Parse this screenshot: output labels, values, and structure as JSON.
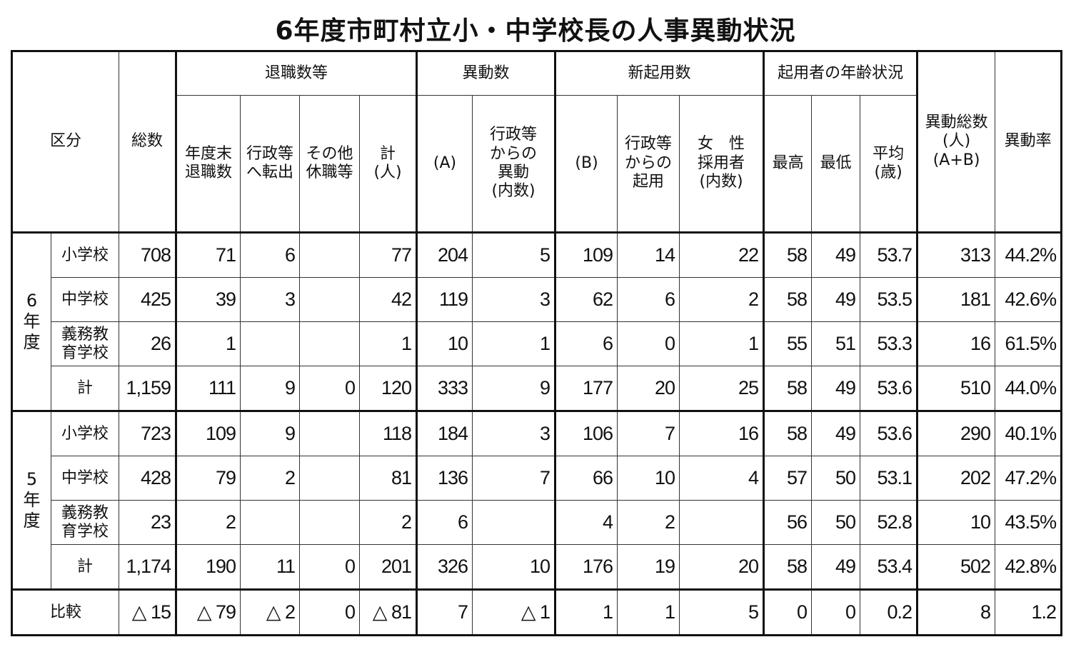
{
  "title": "6年度市町村立小・中学校長の人事異動状況",
  "header": {
    "kubun": "区分",
    "total": "総数",
    "retire_group": "退職数等",
    "transfer_group": "異動数",
    "new_group": "新起用数",
    "age_group": "起用者の年齢状況",
    "grand_total": "異動総数\n(人)\n(A+B)",
    "rate": "異動率",
    "sub": [
      "年度末\n退職数",
      "行政等\nへ転出",
      "その他\n休職等",
      "計\n(人)",
      "(A)",
      "行政等\nからの\n異動\n(内数)",
      "(B)",
      "行政等\nからの\n起用",
      "女　性\n採用者\n(内数)",
      "最高",
      "最低",
      "平均\n(歳)"
    ]
  },
  "groups": [
    {
      "year": "6\n年\n度",
      "rows": [
        {
          "label": "小学校",
          "values": [
            "708",
            "71",
            "6",
            "",
            "77",
            "204",
            "5",
            "109",
            "14",
            "22",
            "58",
            "49",
            "53.7",
            "313",
            "44.2%"
          ]
        },
        {
          "label": "中学校",
          "values": [
            "425",
            "39",
            "3",
            "",
            "42",
            "119",
            "3",
            "62",
            "6",
            "2",
            "58",
            "49",
            "53.5",
            "181",
            "42.6%"
          ]
        },
        {
          "label": "義務教\n育学校",
          "values": [
            "26",
            "1",
            "",
            "",
            "1",
            "10",
            "1",
            "6",
            "0",
            "1",
            "55",
            "51",
            "53.3",
            "16",
            "61.5%"
          ]
        },
        {
          "label": "計",
          "values": [
            "1,159",
            "111",
            "9",
            "0",
            "120",
            "333",
            "9",
            "177",
            "20",
            "25",
            "58",
            "49",
            "53.6",
            "510",
            "44.0%"
          ]
        }
      ]
    },
    {
      "year": "5\n年\n度",
      "rows": [
        {
          "label": "小学校",
          "values": [
            "723",
            "109",
            "9",
            "",
            "118",
            "184",
            "3",
            "106",
            "7",
            "16",
            "58",
            "49",
            "53.6",
            "290",
            "40.1%"
          ]
        },
        {
          "label": "中学校",
          "values": [
            "428",
            "79",
            "2",
            "",
            "81",
            "136",
            "7",
            "66",
            "10",
            "4",
            "57",
            "50",
            "53.1",
            "202",
            "47.2%"
          ]
        },
        {
          "label": "義務教\n育学校",
          "values": [
            "23",
            "2",
            "",
            "",
            "2",
            "6",
            "",
            "4",
            "2",
            "",
            "56",
            "50",
            "52.8",
            "10",
            "43.5%"
          ]
        },
        {
          "label": "計",
          "values": [
            "1,174",
            "190",
            "11",
            "0",
            "201",
            "326",
            "10",
            "176",
            "19",
            "20",
            "58",
            "49",
            "53.4",
            "502",
            "42.8%"
          ]
        }
      ]
    }
  ],
  "comparison": {
    "label": "比較",
    "values": [
      "△ 15",
      "△ 79",
      "△ 2",
      "0",
      "△ 81",
      "7",
      "△ 1",
      "1",
      "1",
      "5",
      "0",
      "0",
      "0.2",
      "8",
      "1.2"
    ]
  }
}
